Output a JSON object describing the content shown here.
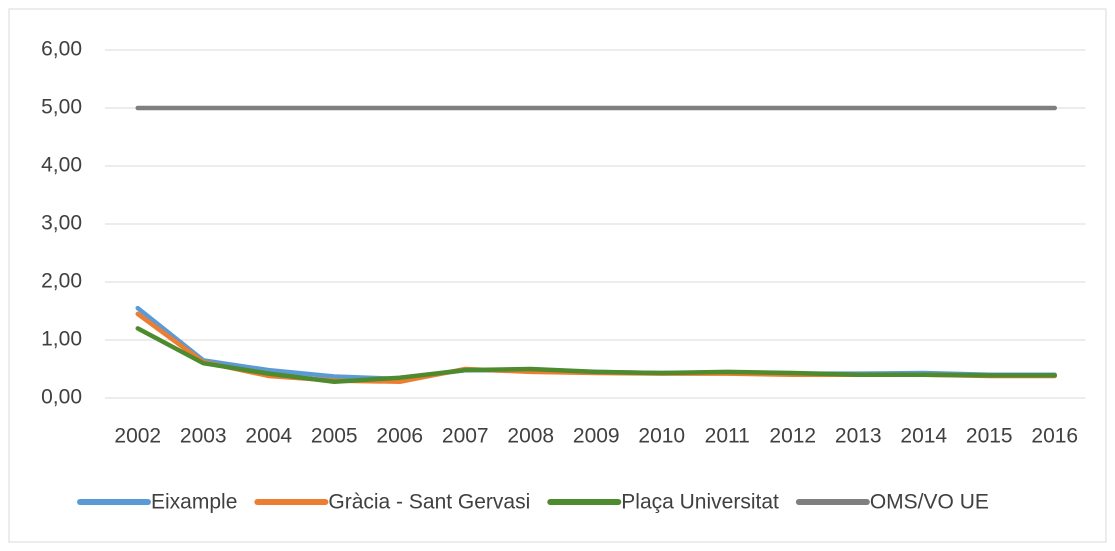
{
  "chart_data": {
    "type": "line",
    "categories": [
      "2002",
      "2003",
      "2004",
      "2005",
      "2006",
      "2007",
      "2008",
      "2009",
      "2010",
      "2011",
      "2012",
      "2013",
      "2014",
      "2015",
      "2016"
    ],
    "series": [
      {
        "name": "Eixample",
        "color": "#5b9bd5",
        "values": [
          1.55,
          0.65,
          0.48,
          0.37,
          0.33,
          0.48,
          0.47,
          0.45,
          0.43,
          0.43,
          0.42,
          0.42,
          0.43,
          0.4,
          0.4
        ]
      },
      {
        "name": "Gràcia - Sant Gervasi",
        "color": "#ed7d31",
        "values": [
          1.45,
          0.62,
          0.38,
          0.3,
          0.28,
          0.5,
          0.45,
          0.43,
          0.42,
          0.42,
          0.4,
          0.4,
          0.4,
          0.38,
          0.38
        ]
      },
      {
        "name": "Plaça Universitat",
        "color": "#4e8a2e",
        "values": [
          1.2,
          0.6,
          0.42,
          0.28,
          0.35,
          0.48,
          0.5,
          0.45,
          0.43,
          0.45,
          0.43,
          0.4,
          0.4,
          0.39,
          0.39
        ]
      },
      {
        "name": "OMS/VO UE",
        "color": "#7f7f7f",
        "values": [
          5,
          5,
          5,
          5,
          5,
          5,
          5,
          5,
          5,
          5,
          5,
          5,
          5,
          5,
          5
        ]
      }
    ],
    "ylim": [
      0,
      6
    ],
    "yticks": [
      {
        "value": 0,
        "label": "0,00"
      },
      {
        "value": 1,
        "label": "1,00"
      },
      {
        "value": 2,
        "label": "2,00"
      },
      {
        "value": 3,
        "label": "3,00"
      },
      {
        "value": 4,
        "label": "4,00"
      },
      {
        "value": 5,
        "label": "5,00"
      },
      {
        "value": 6,
        "label": "6,00"
      }
    ],
    "grid": true,
    "legend": "bottom"
  }
}
